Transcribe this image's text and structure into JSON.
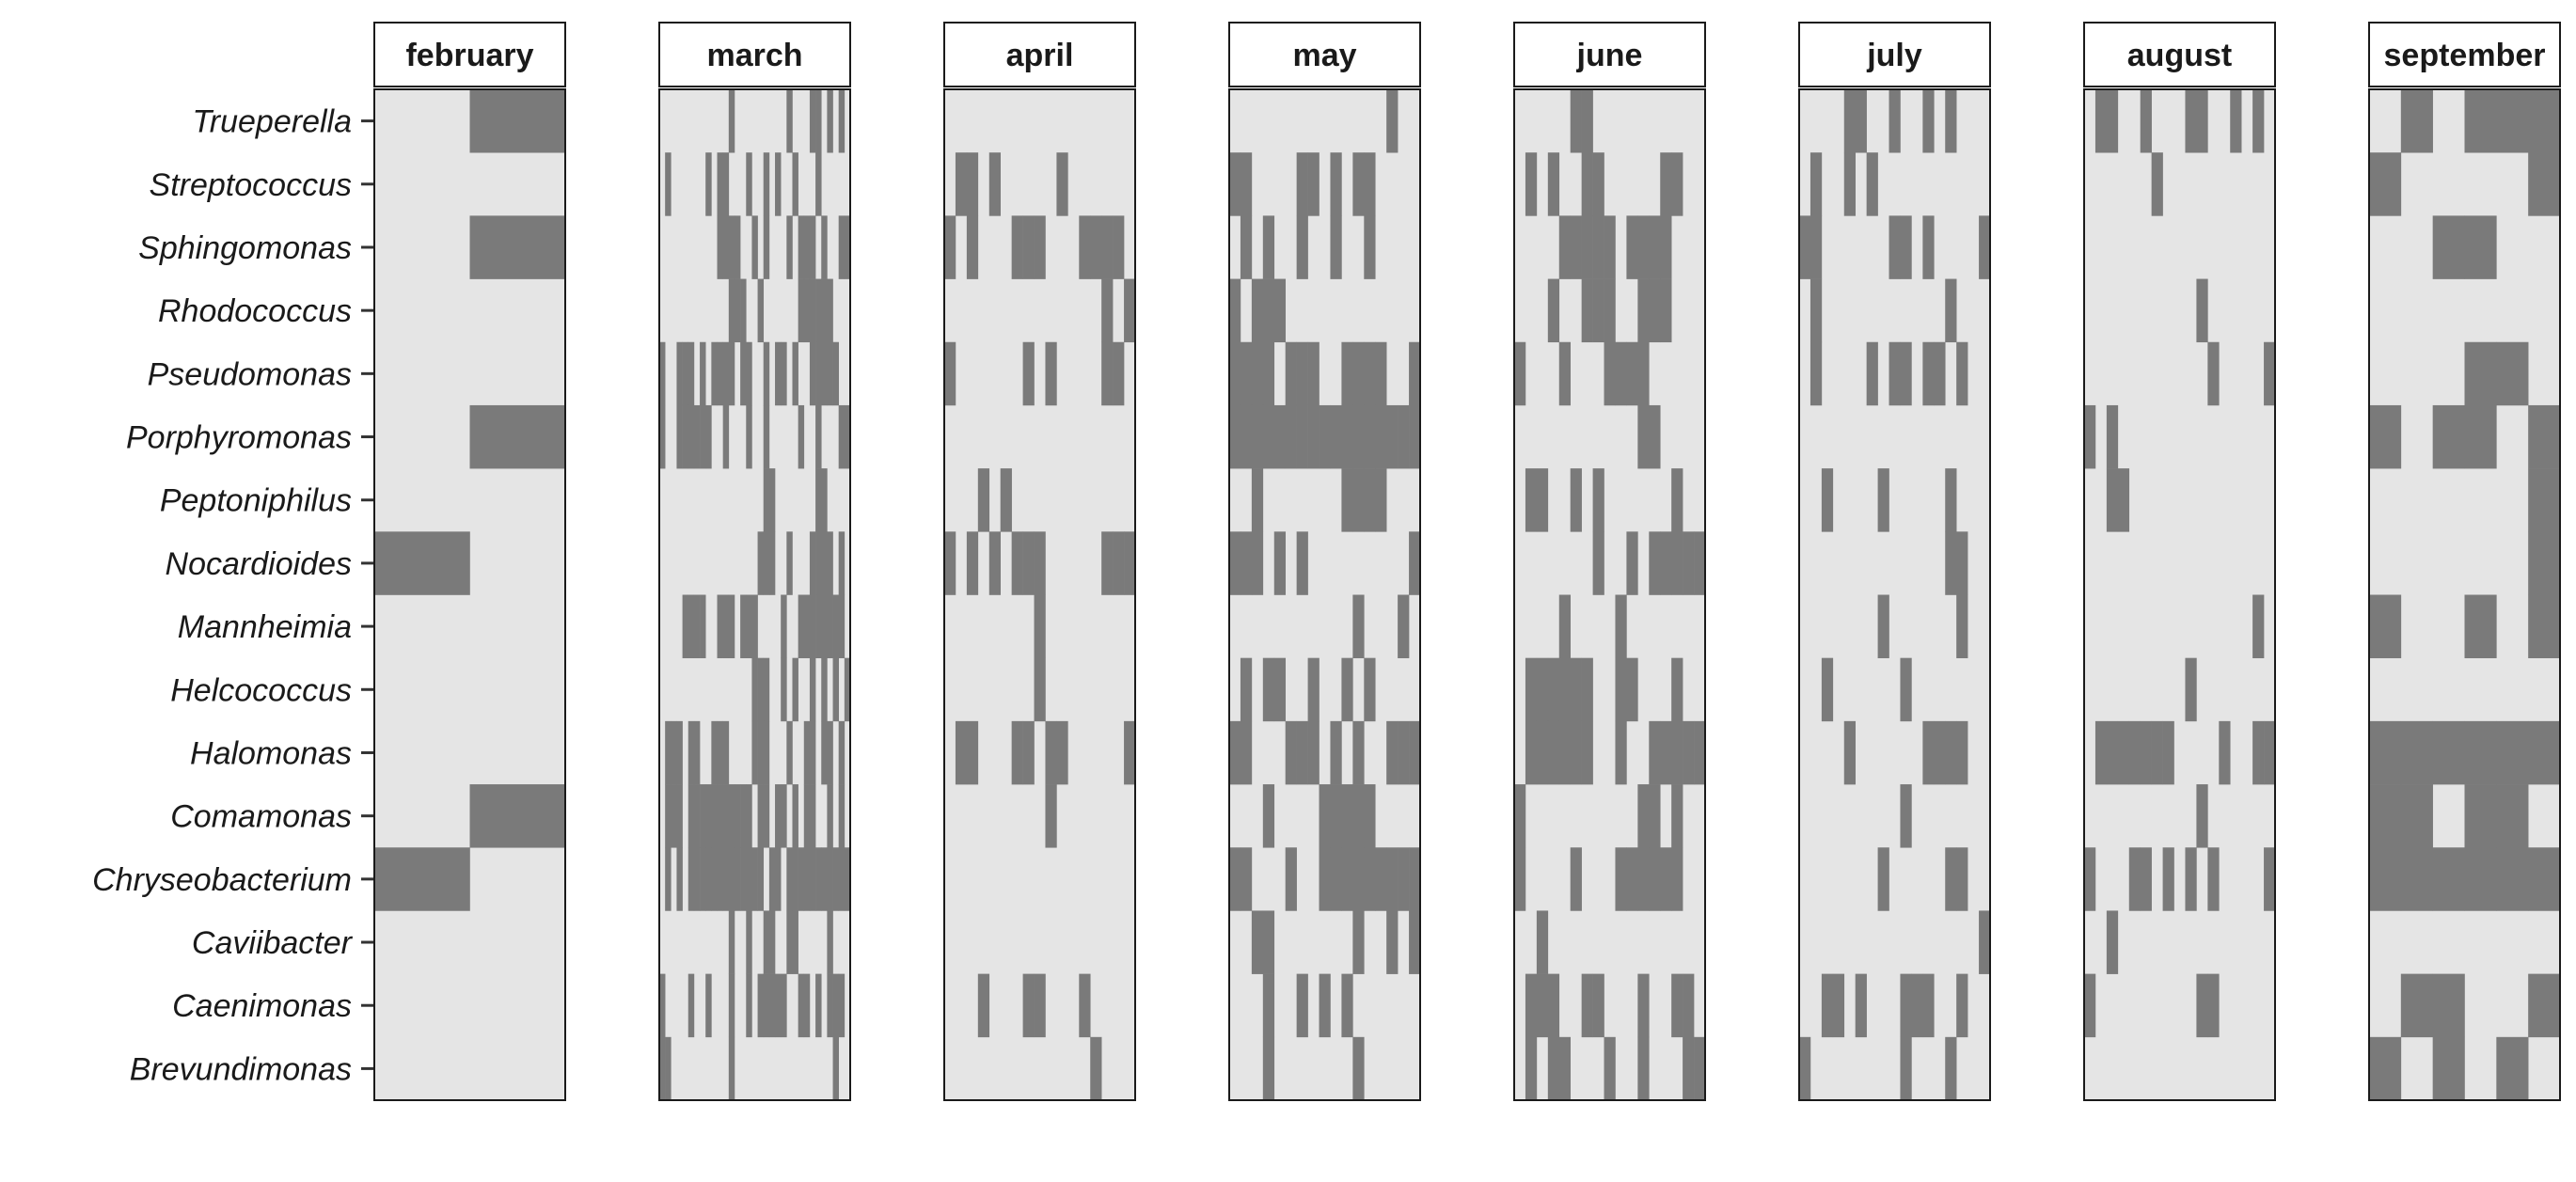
{
  "chart_data": {
    "type": "heatmap",
    "facets": [
      "february",
      "march",
      "april",
      "may",
      "june",
      "july",
      "august",
      "september"
    ],
    "rows": [
      "Trueperella",
      "Streptococcus",
      "Sphingomonas",
      "Rhodococcus",
      "Pseudomonas",
      "Porphyromonas",
      "Peptoniphilus",
      "Nocardioides",
      "Mannheimia",
      "Helcococcus",
      "Halomonas",
      "Comamonas",
      "Chryseobacterium",
      "Caviibacter",
      "Caenimonas",
      "Brevundimonas"
    ],
    "samples_per_facet": [
      2,
      33,
      17,
      17,
      17,
      17,
      17,
      6
    ],
    "presence": {
      "february": {
        "Trueperella": [
          1
        ],
        "Sphingomonas": [
          1
        ],
        "Porphyromonas": [
          1
        ],
        "Nocardioides": [
          0
        ],
        "Comamonas": [
          1
        ],
        "Chryseobacterium": [
          0
        ]
      },
      "march": {
        "Trueperella": [
          12,
          22,
          26,
          27,
          29,
          31
        ],
        "Streptococcus": [
          1,
          8,
          10,
          11,
          15,
          18,
          20,
          23,
          27
        ],
        "Sphingomonas": [
          10,
          11,
          12,
          13,
          16,
          18,
          22,
          24,
          25,
          26,
          28,
          31,
          32
        ],
        "Rhodococcus": [
          12,
          13,
          14,
          17,
          24,
          25,
          26,
          27,
          28,
          29
        ],
        "Pseudomonas": [
          0,
          3,
          4,
          5,
          7,
          9,
          10,
          11,
          12,
          14,
          15,
          18,
          20,
          21,
          23,
          26,
          27,
          28,
          29,
          30
        ],
        "Porphyromonas": [
          0,
          3,
          4,
          5,
          6,
          7,
          8,
          11,
          15,
          18,
          24,
          27,
          31,
          32
        ],
        "Peptoniphilus": [
          18,
          19,
          27,
          28
        ],
        "Nocardioides": [
          17,
          18,
          19,
          22,
          26,
          27,
          28,
          29,
          31
        ],
        "Mannheimia": [
          4,
          5,
          6,
          7,
          10,
          11,
          12,
          14,
          15,
          16,
          21,
          24,
          25,
          26,
          27,
          28,
          29,
          30,
          31
        ],
        "Helcococcus": [
          16,
          17,
          18,
          21,
          23,
          26,
          28,
          30,
          32
        ],
        "Halomonas": [
          1,
          2,
          3,
          5,
          6,
          9,
          10,
          11,
          16,
          17,
          18,
          22,
          25,
          26,
          28,
          29,
          31
        ],
        "Comamonas": [
          1,
          2,
          3,
          5,
          6,
          7,
          8,
          9,
          10,
          11,
          12,
          13,
          14,
          15,
          17,
          18,
          20,
          21,
          23,
          25,
          26,
          29,
          31
        ],
        "Chryseobacterium": [
          1,
          3,
          5,
          6,
          7,
          8,
          9,
          10,
          11,
          12,
          13,
          14,
          15,
          16,
          17,
          19,
          20,
          22,
          23,
          24,
          25,
          26,
          27,
          28,
          29,
          30,
          31,
          32
        ],
        "Caviibacter": [
          12,
          15,
          18,
          19,
          22,
          23,
          29
        ],
        "Caenimonas": [
          0,
          5,
          8,
          12,
          15,
          17,
          18,
          19,
          20,
          21,
          24,
          25,
          27,
          29,
          30,
          31
        ],
        "Brevundimonas": [
          0,
          1,
          12,
          30
        ]
      },
      "april": {
        "Streptococcus": [
          1,
          2,
          4,
          10
        ],
        "Sphingomonas": [
          0,
          2,
          6,
          7,
          8,
          12,
          13,
          14,
          15
        ],
        "Rhodococcus": [
          14,
          16
        ],
        "Pseudomonas": [
          0,
          7,
          9,
          14,
          15
        ],
        "Porphyromonas": [],
        "Peptoniphilus": [
          3,
          5
        ],
        "Nocardioides": [
          0,
          2,
          4,
          6,
          7,
          8,
          14,
          15,
          16
        ],
        "Mannheimia": [
          8
        ],
        "Helcococcus": [
          8
        ],
        "Halomonas": [
          1,
          2,
          6,
          7,
          9,
          10,
          16
        ],
        "Comamonas": [
          9
        ],
        "Chryseobacterium": [],
        "Caviibacter": [],
        "Caenimonas": [
          3,
          7,
          8,
          12
        ],
        "Brevundimonas": [
          13
        ]
      },
      "may": {
        "Trueperella": [
          14
        ],
        "Streptococcus": [
          0,
          1,
          6,
          7,
          9,
          11,
          12
        ],
        "Sphingomonas": [
          1,
          3,
          6,
          9,
          12
        ],
        "Rhodococcus": [
          0,
          2,
          3,
          4
        ],
        "Pseudomonas": [
          0,
          1,
          2,
          3,
          5,
          6,
          7,
          10,
          11,
          12,
          13,
          16
        ],
        "Porphyromonas": [
          0,
          1,
          2,
          3,
          4,
          5,
          6,
          7,
          8,
          9,
          10,
          11,
          12,
          13,
          14,
          15,
          16
        ],
        "Peptoniphilus": [
          2,
          10,
          11,
          12,
          13
        ],
        "Nocardioides": [
          0,
          1,
          2,
          4,
          6,
          16
        ],
        "Mannheimia": [
          11,
          15
        ],
        "Helcococcus": [
          1,
          3,
          4,
          7,
          10,
          12
        ],
        "Halomonas": [
          0,
          1,
          5,
          6,
          7,
          9,
          11,
          14,
          15,
          16
        ],
        "Comamonas": [
          3,
          8,
          9,
          10,
          11,
          12
        ],
        "Chryseobacterium": [
          0,
          1,
          5,
          8,
          9,
          10,
          11,
          12,
          13,
          14,
          15,
          16
        ],
        "Caviibacter": [
          2,
          3,
          11,
          14,
          16
        ],
        "Caenimonas": [
          3,
          6,
          8,
          10
        ],
        "Brevundimonas": [
          3,
          11
        ]
      },
      "june": {
        "Trueperella": [
          5,
          6
        ],
        "Streptococcus": [
          1,
          3,
          6,
          7,
          13,
          14
        ],
        "Sphingomonas": [
          4,
          5,
          6,
          7,
          8,
          10,
          11,
          12,
          13
        ],
        "Rhodococcus": [
          3,
          6,
          7,
          8,
          11,
          12,
          13
        ],
        "Pseudomonas": [
          0,
          4,
          8,
          9,
          10,
          11
        ],
        "Porphyromonas": [
          11,
          12
        ],
        "Peptoniphilus": [
          1,
          2,
          5,
          7,
          14
        ],
        "Nocardioides": [
          7,
          10,
          12,
          13,
          14,
          15,
          16
        ],
        "Mannheimia": [
          4,
          9
        ],
        "Helcococcus": [
          1,
          2,
          3,
          4,
          5,
          6,
          9,
          10,
          14
        ],
        "Halomonas": [
          1,
          2,
          3,
          4,
          5,
          6,
          9,
          12,
          13,
          14,
          15,
          16
        ],
        "Comamonas": [
          0,
          11,
          12,
          14
        ],
        "Chryseobacterium": [
          0,
          5,
          9,
          10,
          11,
          12,
          13,
          14
        ],
        "Caviibacter": [
          2
        ],
        "Caenimonas": [
          1,
          2,
          3,
          6,
          7,
          11,
          14,
          15
        ],
        "Brevundimonas": [
          1,
          3,
          4,
          8,
          11,
          15,
          16
        ]
      },
      "july": {
        "Trueperella": [
          4,
          5,
          8,
          11,
          13
        ],
        "Streptococcus": [
          1,
          4,
          6
        ],
        "Sphingomonas": [
          0,
          1,
          8,
          9,
          11,
          16
        ],
        "Rhodococcus": [
          1,
          13
        ],
        "Pseudomonas": [
          1,
          6,
          8,
          9,
          11,
          12,
          14
        ],
        "Porphyromonas": [],
        "Peptoniphilus": [
          2,
          7,
          13
        ],
        "Nocardioides": [
          13,
          14
        ],
        "Mannheimia": [
          7,
          14
        ],
        "Helcococcus": [
          2,
          9
        ],
        "Halomonas": [
          4,
          11,
          12,
          13,
          14
        ],
        "Comamonas": [
          9
        ],
        "Chryseobacterium": [
          7,
          13,
          14
        ],
        "Caviibacter": [
          16
        ],
        "Caenimonas": [
          2,
          3,
          5,
          9,
          10,
          11,
          14
        ],
        "Brevundimonas": [
          0,
          9,
          13
        ]
      },
      "august": {
        "Trueperella": [
          1,
          2,
          5,
          9,
          10,
          13,
          15
        ],
        "Streptococcus": [
          6
        ],
        "Sphingomonas": [],
        "Rhodococcus": [
          10
        ],
        "Pseudomonas": [
          11,
          16
        ],
        "Porphyromonas": [
          0,
          2
        ],
        "Peptoniphilus": [
          2,
          3
        ],
        "Nocardioides": [],
        "Mannheimia": [
          15
        ],
        "Helcococcus": [
          9
        ],
        "Halomonas": [
          1,
          2,
          3,
          4,
          5,
          6,
          7,
          12,
          15,
          16
        ],
        "Comamonas": [
          10
        ],
        "Chryseobacterium": [
          0,
          4,
          5,
          7,
          9,
          11,
          16
        ],
        "Caviibacter": [
          2
        ],
        "Caenimonas": [
          0,
          10,
          11
        ],
        "Brevundimonas": []
      },
      "september": {
        "Trueperella": [
          1,
          3,
          4,
          5
        ],
        "Streptococcus": [
          0,
          5
        ],
        "Sphingomonas": [
          2,
          3
        ],
        "Rhodococcus": [],
        "Pseudomonas": [
          3,
          4
        ],
        "Porphyromonas": [
          0,
          2,
          3,
          5
        ],
        "Peptoniphilus": [
          5
        ],
        "Nocardioides": [
          5
        ],
        "Mannheimia": [
          0,
          3,
          5
        ],
        "Helcococcus": [],
        "Halomonas": [
          0,
          1,
          2,
          3,
          4,
          5
        ],
        "Comamonas": [
          0,
          1,
          3,
          4
        ],
        "Chryseobacterium": [
          0,
          1,
          2,
          3,
          4,
          5
        ],
        "Caviibacter": [],
        "Caenimonas": [
          1,
          2,
          5
        ],
        "Brevundimonas": [
          0,
          2,
          4
        ]
      }
    },
    "colors": {
      "present": "#7a7a7a",
      "absent": "#e5e5e5",
      "strip": "#ffffff",
      "text": "#1a1a1a"
    },
    "legend": "none",
    "grid": false
  }
}
